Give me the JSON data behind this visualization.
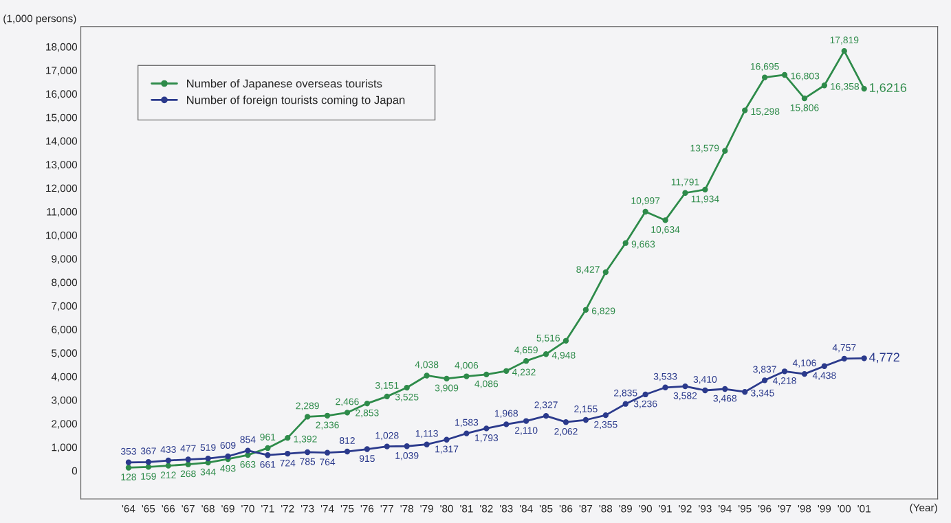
{
  "chart_data": {
    "type": "line",
    "ylabel": "(1,000 persons)",
    "xlabel": "(Year)",
    "categories": [
      "'64",
      "'65",
      "'66",
      "'67",
      "'68",
      "'69",
      "'70",
      "'71",
      "'72",
      "'73",
      "'74",
      "'75",
      "'76",
      "'77",
      "'78",
      "'79",
      "'80",
      "'81",
      "'82",
      "'83",
      "'84",
      "'85",
      "'86",
      "'87",
      "'88",
      "'89",
      "'90",
      "'91",
      "'92",
      "'93",
      "'94",
      "'95",
      "'96",
      "'97",
      "'98",
      "'99",
      "'00",
      "'01"
    ],
    "series": [
      {
        "name": "Number of Japanese overseas tourists",
        "color": "#2e8b4a",
        "values": [
          128,
          159,
          212,
          268,
          344,
          493,
          663,
          961,
          1392,
          2289,
          2336,
          2466,
          2853,
          3151,
          3525,
          4038,
          3909,
          4006,
          4086,
          4232,
          4659,
          4948,
          5516,
          6829,
          8427,
          9663,
          10997,
          10634,
          11791,
          11934,
          13579,
          15298,
          16695,
          16803,
          15806,
          16358,
          17819,
          16216
        ],
        "value_labels": [
          "128",
          "159",
          "212",
          "268",
          "344",
          "493",
          "663",
          "961",
          "1,392",
          "2,289",
          "2,336",
          "2,466",
          "2,853",
          "3,151",
          "3,525",
          "4,038",
          "3,909",
          "4,006",
          "4,086",
          "4,232",
          "4,659",
          "4,948",
          "5,516",
          "6,829",
          "8,427",
          "9,663",
          "10,997",
          "10,634",
          "11,791",
          "11,934",
          "13,579",
          "15,298",
          "16,695",
          "16,803",
          "15,806",
          "16,358",
          "17,819",
          "1,6216"
        ]
      },
      {
        "name": "Number of foreign tourists coming to Japan",
        "color": "#2b3a8c",
        "values": [
          353,
          367,
          433,
          477,
          519,
          609,
          854,
          661,
          724,
          785,
          764,
          812,
          915,
          1028,
          1039,
          1113,
          1317,
          1583,
          1793,
          1968,
          2110,
          2327,
          2062,
          2155,
          2355,
          2835,
          3236,
          3533,
          3582,
          3410,
          3468,
          3345,
          3837,
          4218,
          4106,
          4438,
          4757,
          4772
        ],
        "value_labels": [
          "353",
          "367",
          "433",
          "477",
          "519",
          "609",
          "854",
          "661",
          "724",
          "785",
          "764",
          "812",
          "915",
          "1,028",
          "1,039",
          "1,113",
          "1,317",
          "1,583",
          "1,793",
          "1,968",
          "2,110",
          "2,327",
          "2,062",
          "2,155",
          "2,355",
          "2,835",
          "3,236",
          "3,533",
          "3,582",
          "3,410",
          "3,468",
          "3,345",
          "3,837",
          "4,218",
          "4,106",
          "4,438",
          "4,757",
          "4,772"
        ]
      }
    ],
    "ylim": [
      -1200,
      18850
    ],
    "yticks": [
      {
        "value": 0,
        "label": "0"
      },
      {
        "value": 1000,
        "label": "1,000"
      },
      {
        "value": 2000,
        "label": "2,000"
      },
      {
        "value": 3000,
        "label": "3,000"
      },
      {
        "value": 4000,
        "label": "4,000"
      },
      {
        "value": 5000,
        "label": "5,000"
      },
      {
        "value": 6000,
        "label": "6,000"
      },
      {
        "value": 7000,
        "label": "7,000"
      },
      {
        "value": 8000,
        "label": "8,000"
      },
      {
        "value": 9000,
        "label": "9,000"
      },
      {
        "value": 10000,
        "label": "10,000"
      },
      {
        "value": 11000,
        "label": "11,000"
      },
      {
        "value": 12000,
        "label": "12,000"
      },
      {
        "value": 13000,
        "label": "13,000"
      },
      {
        "value": 14000,
        "label": "14,000"
      },
      {
        "value": 15000,
        "label": "15,000"
      },
      {
        "value": 16000,
        "label": "16,000"
      },
      {
        "value": 17000,
        "label": "17,000"
      },
      {
        "value": 18000,
        "label": "18,000"
      }
    ],
    "marker": "circle",
    "line_style": "solid",
    "grid": false,
    "legend": "top left"
  }
}
